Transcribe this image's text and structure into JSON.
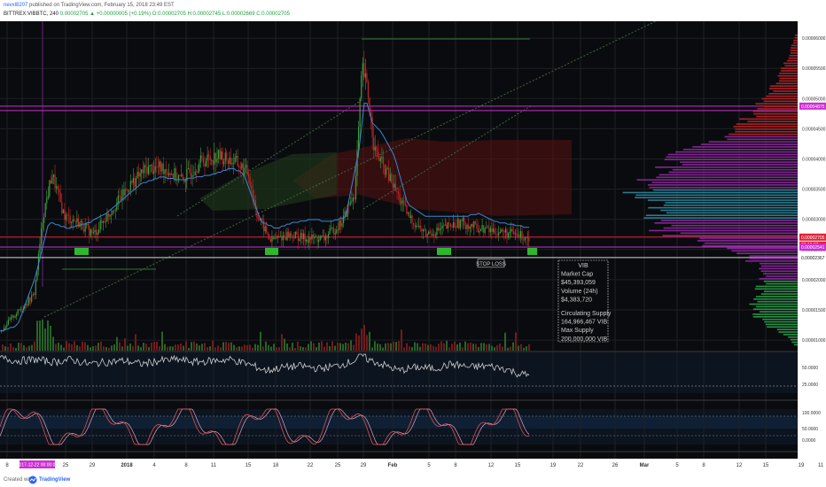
{
  "header": {
    "author": "nevxl8207",
    "published": "published on TradingView.com, February 15, 2018 23:49 EST",
    "symbol": "BITTREX:VIBBTC, 240",
    "ohlc_open": "0.00002705",
    "change": "+0.00000005 (+0.19%)",
    "ohlc_o": "O:0.00002705",
    "ohlc_h": "H:0.00002745",
    "ohlc_l": "L:0.00002669",
    "ohlc_c": "C:0.00002705"
  },
  "footer": {
    "created_with": "Created with",
    "brand": "TradingView"
  },
  "chart_data": {
    "type": "candlestick",
    "ylim": [
      8.25e-06,
      6.28e-05
    ],
    "price_ticks": [
      "0.00006000",
      "0.00005500",
      "0.00005000",
      "0.00004500",
      "0.00004000",
      "0.00003500",
      "0.00003000",
      "0.00002500",
      "0.00002000",
      "0.00001500",
      "0.00001000"
    ],
    "price_tick_values": [
      6e-05,
      5.5e-05,
      5e-05,
      4.5e-05,
      4e-05,
      3.5e-05,
      3e-05,
      2.5e-05,
      2e-05,
      1.5e-05,
      1e-05
    ],
    "resistance_label": "0.00004875",
    "resistance_value": 4.875e-05,
    "last_price_label": "0.00002705",
    "last_price_value": 2.705e-05,
    "countdown_label": "03:10:37",
    "support_label": "0.00002541",
    "support_value": 2.541e-05,
    "stop_price_label": "0.00002367",
    "stop_price_value": 2.367e-05,
    "stop_loss_label": "STOP LOSS",
    "rsi_ticks": [
      "50.0000",
      "25.0000"
    ],
    "stoch_ticks": [
      "100.0000",
      "50.0000",
      "0.0000"
    ],
    "x_ticks": [
      "8",
      "2017-12-22 00:00:00",
      "25",
      "29",
      "2018",
      "4",
      "8",
      "11",
      "15",
      "18",
      "22",
      "25",
      "29",
      "Feb",
      "5",
      "8",
      "12",
      "15",
      "19",
      "22",
      "26",
      "Mar",
      "5",
      "8",
      "12",
      "15",
      "19",
      "11"
    ],
    "x_tick_positions": [
      8,
      25,
      74,
      104,
      143,
      174,
      210,
      241,
      280,
      311,
      350,
      381,
      410,
      443,
      484,
      514,
      554,
      584,
      624,
      655,
      694,
      727,
      764,
      794,
      834,
      864,
      904,
      926
    ],
    "info_box": {
      "lines": [
        "VIB",
        "Market Cap",
        "$45,393,059",
        "Volume (24h)",
        "$4,383,720",
        "Circulating Supply",
        "164,966,467 VIB",
        "Max Supply",
        "200,000,000 VIB"
      ]
    },
    "price_series_anchors": [
      [
        0,
        11.5
      ],
      [
        12,
        13.5
      ],
      [
        25,
        15.5
      ],
      [
        38,
        17.5
      ],
      [
        48,
        30.5
      ],
      [
        58,
        37.5
      ],
      [
        72,
        30.5
      ],
      [
        88,
        29.5
      ],
      [
        105,
        27.5
      ],
      [
        125,
        31.5
      ],
      [
        145,
        35.5
      ],
      [
        165,
        38.5
      ],
      [
        185,
        38.5
      ],
      [
        205,
        36.5
      ],
      [
        225,
        39.5
      ],
      [
        245,
        40.5
      ],
      [
        265,
        39.5
      ],
      [
        280,
        37.5
      ],
      [
        290,
        30.5
      ],
      [
        305,
        26.5
      ],
      [
        325,
        27.5
      ],
      [
        345,
        26.8
      ],
      [
        365,
        26.8
      ],
      [
        385,
        29.5
      ],
      [
        400,
        34.5
      ],
      [
        408,
        55.0
      ],
      [
        414,
        51.5
      ],
      [
        422,
        41.5
      ],
      [
        440,
        36.5
      ],
      [
        460,
        30.5
      ],
      [
        480,
        27.5
      ],
      [
        500,
        28.5
      ],
      [
        520,
        29.5
      ],
      [
        540,
        28.5
      ],
      [
        560,
        28.0
      ],
      [
        580,
        27.5
      ],
      [
        596,
        27.05
      ]
    ],
    "baseline_anchors": [
      [
        0,
        11.5
      ],
      [
        20,
        12.5
      ],
      [
        40,
        20.5
      ],
      [
        55,
        29.5
      ],
      [
        75,
        28.5
      ],
      [
        100,
        29.5
      ],
      [
        120,
        31.0
      ],
      [
        140,
        33.5
      ],
      [
        160,
        36.0
      ],
      [
        180,
        37.0
      ],
      [
        200,
        36.5
      ],
      [
        220,
        37.0
      ],
      [
        240,
        37.5
      ],
      [
        260,
        38.5
      ],
      [
        275,
        37.5
      ],
      [
        285,
        33.5
      ],
      [
        295,
        29.5
      ],
      [
        310,
        28.5
      ],
      [
        330,
        29.5
      ],
      [
        350,
        30.0
      ],
      [
        370,
        29.5
      ],
      [
        390,
        30.5
      ],
      [
        405,
        41.5
      ],
      [
        412,
        50.5
      ],
      [
        420,
        46.0
      ],
      [
        430,
        44.5
      ],
      [
        445,
        40.5
      ],
      [
        460,
        32.5
      ],
      [
        480,
        30.5
      ],
      [
        500,
        30.5
      ],
      [
        520,
        30.5
      ],
      [
        540,
        31.0
      ],
      [
        560,
        29.5
      ],
      [
        580,
        29.0
      ],
      [
        597,
        28.5
      ]
    ],
    "rsi_anchors": [
      [
        0,
        64
      ],
      [
        20,
        60
      ],
      [
        40,
        62
      ],
      [
        60,
        58
      ],
      [
        80,
        62
      ],
      [
        100,
        55
      ],
      [
        120,
        58
      ],
      [
        140,
        60
      ],
      [
        160,
        55
      ],
      [
        180,
        60
      ],
      [
        200,
        62
      ],
      [
        220,
        58
      ],
      [
        240,
        60
      ],
      [
        260,
        62
      ],
      [
        280,
        55
      ],
      [
        300,
        45
      ],
      [
        320,
        50
      ],
      [
        340,
        52
      ],
      [
        360,
        48
      ],
      [
        380,
        52
      ],
      [
        400,
        60
      ],
      [
        408,
        70
      ],
      [
        415,
        62
      ],
      [
        430,
        55
      ],
      [
        450,
        45
      ],
      [
        470,
        50
      ],
      [
        490,
        48
      ],
      [
        510,
        55
      ],
      [
        530,
        50
      ],
      [
        550,
        52
      ],
      [
        570,
        48
      ],
      [
        585,
        40
      ],
      [
        597,
        38
      ]
    ],
    "volume_profile_anchors": [
      [
        6.05e-05,
        3
      ],
      [
        5.8e-05,
        8
      ],
      [
        5.6e-05,
        14
      ],
      [
        5.4e-05,
        20
      ],
      [
        5.2e-05,
        28
      ],
      [
        5e-05,
        36
      ],
      [
        4.8e-05,
        48
      ],
      [
        4.6e-05,
        62
      ],
      [
        4.4e-05,
        82
      ],
      [
        4.2e-05,
        110
      ],
      [
        4e-05,
        138
      ],
      [
        3.8e-05,
        155
      ],
      [
        3.6e-05,
        168
      ],
      [
        3.4e-05,
        175
      ],
      [
        3.2e-05,
        172
      ],
      [
        3e-05,
        160
      ],
      [
        2.8e-05,
        150
      ],
      [
        2.6e-05,
        110
      ],
      [
        2.4e-05,
        60
      ],
      [
        2.2e-05,
        42
      ],
      [
        2e-05,
        38
      ],
      [
        1.8e-05,
        44
      ],
      [
        1.6e-05,
        52
      ],
      [
        1.4e-05,
        48
      ],
      [
        1.2e-05,
        30
      ],
      [
        1.05e-05,
        12
      ],
      [
        9.2e-06,
        4
      ]
    ],
    "grid": true,
    "colors": {
      "background": "#0a0b0e",
      "grid": "#1e2024",
      "up_candle": "#3d9e3d",
      "down_candle": "#c0282a",
      "baseline": "#3a87d6",
      "resistance": "#cc2fd0",
      "last_price": "#e0243a",
      "stop_line": "#d8d8d8",
      "support_box": "#2eb82e",
      "rsi_line": "#cfcfcf",
      "stoch_k": "#e05050",
      "stoch_d": "#e8a0c0",
      "volume_profile": [
        "#b8262a",
        "#8e2aa0",
        "#2a8aa0",
        "#2aa04a"
      ]
    }
  }
}
